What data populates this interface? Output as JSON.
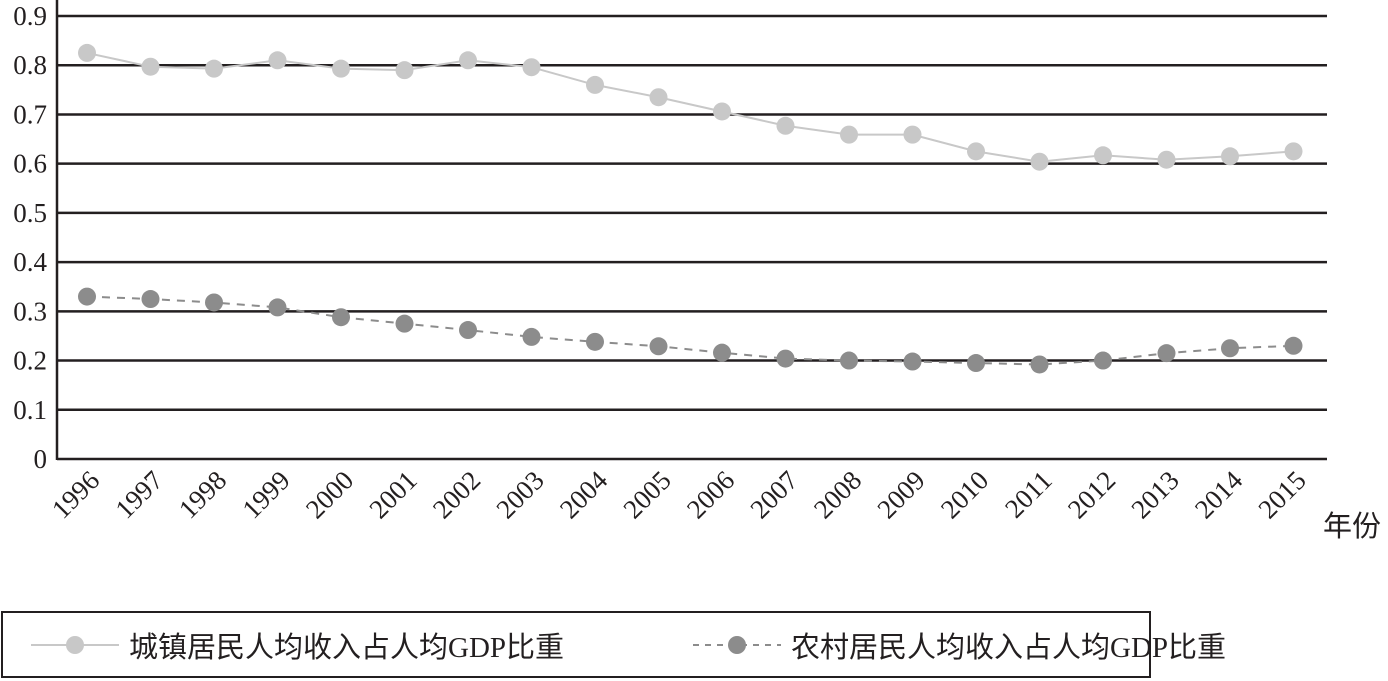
{
  "chart_data": {
    "type": "line",
    "title": "",
    "xlabel": "年份",
    "ylabel": "",
    "ylim": [
      0,
      0.9
    ],
    "yticks": [
      "0",
      "0.1",
      "0.2",
      "0.3",
      "0.4",
      "0.5",
      "0.6",
      "0.7",
      "0.8",
      "0.9"
    ],
    "grid": true,
    "legend_position": "bottom",
    "categories": [
      "1996",
      "1997",
      "1998",
      "1999",
      "2000",
      "2001",
      "2002",
      "2003",
      "2004",
      "2005",
      "2006",
      "2007",
      "2008",
      "2009",
      "2010",
      "2011",
      "2012",
      "2013",
      "2014",
      "2015"
    ],
    "series": [
      {
        "name": "城镇居民人均收入占人均GDP比重",
        "style": "solid",
        "color": "#c8c8c8",
        "values": [
          0.825,
          0.797,
          0.793,
          0.81,
          0.793,
          0.79,
          0.81,
          0.796,
          0.76,
          0.735,
          0.706,
          0.677,
          0.659,
          0.659,
          0.625,
          0.604,
          0.617,
          0.608,
          0.615,
          0.625
        ]
      },
      {
        "name": "农村居民人均收入占人均GDP比重",
        "style": "dashed",
        "color": "#8c8c8c",
        "values": [
          0.33,
          0.325,
          0.318,
          0.308,
          0.288,
          0.275,
          0.262,
          0.248,
          0.238,
          0.229,
          0.216,
          0.204,
          0.2,
          0.198,
          0.195,
          0.192,
          0.2,
          0.215,
          0.225,
          0.23
        ]
      }
    ]
  },
  "legend": {
    "items": [
      {
        "label": "城镇居民人均收入占人均GDP比重"
      },
      {
        "label": "农村居民人均收入占人均GDP比重"
      }
    ]
  },
  "axis": {
    "x_unit_label": "年份"
  }
}
